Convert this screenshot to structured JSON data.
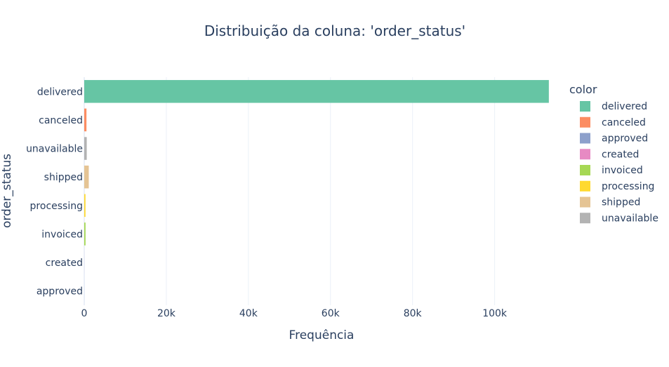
{
  "chart_data": {
    "type": "bar",
    "orientation": "horizontal",
    "title": "Distribuição da coluna: 'order_status'",
    "xlabel": "Frequência",
    "ylabel": "order_status",
    "categories": [
      "delivered",
      "canceled",
      "unavailable",
      "shipped",
      "processing",
      "invoiced",
      "created",
      "approved"
    ],
    "values": [
      113209,
      542,
      609,
      1107,
      301,
      314,
      5,
      3
    ],
    "xlim": [
      0,
      117000
    ],
    "xticks": [
      0,
      20000,
      40000,
      60000,
      80000,
      100000
    ],
    "xtick_labels": [
      "0",
      "20k",
      "40k",
      "60k",
      "80k",
      "100k"
    ],
    "grid": true,
    "legend": {
      "title": "color",
      "position": "right",
      "items": [
        {
          "label": "delivered",
          "color": "#66c5a4"
        },
        {
          "label": "canceled",
          "color": "#fc8d62"
        },
        {
          "label": "approved",
          "color": "#8da0cb"
        },
        {
          "label": "created",
          "color": "#e78ac3"
        },
        {
          "label": "invoiced",
          "color": "#a6d854"
        },
        {
          "label": "processing",
          "color": "#ffd92f"
        },
        {
          "label": "shipped",
          "color": "#e5c494"
        },
        {
          "label": "unavailable",
          "color": "#b3b3b3"
        }
      ]
    },
    "colors": {
      "delivered": "#66c5a4",
      "canceled": "#fc8d62",
      "approved": "#8da0cb",
      "created": "#e78ac3",
      "invoiced": "#a6d854",
      "processing": "#ffd92f",
      "shipped": "#e5c494",
      "unavailable": "#b3b3b3"
    }
  }
}
